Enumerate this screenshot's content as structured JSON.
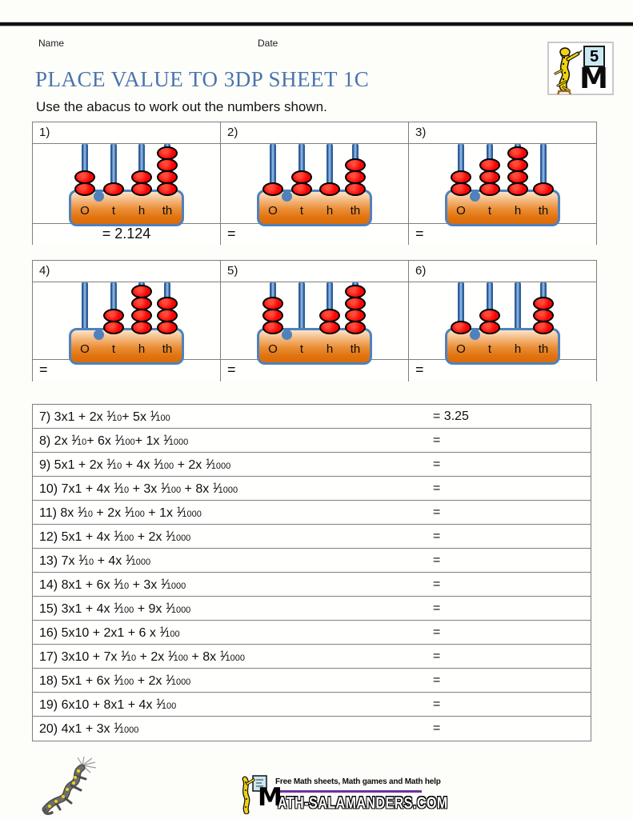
{
  "header": {
    "name_label": "Name",
    "date_label": "Date",
    "title": "PLACE VALUE TO 3DP SHEET 1C",
    "title_color": "#4a74ad",
    "instruction": "Use the abacus to work out the numbers shown.",
    "badge_number": "5",
    "badge_m": "M"
  },
  "abacus_section": {
    "column_labels": [
      "O",
      "t",
      "h",
      "th"
    ],
    "items": [
      {
        "num": "1)",
        "beads": [
          2,
          1,
          2,
          4
        ],
        "answer": "= 2.124",
        "center_answer": true
      },
      {
        "num": "2)",
        "beads": [
          1,
          2,
          1,
          3
        ],
        "answer": "="
      },
      {
        "num": "3)",
        "beads": [
          2,
          3,
          4,
          1
        ],
        "answer": "="
      },
      {
        "num": "4)",
        "beads": [
          0,
          2,
          4,
          3
        ],
        "answer": "="
      },
      {
        "num": "5)",
        "beads": [
          3,
          0,
          2,
          4
        ],
        "answer": "="
      },
      {
        "num": "6)",
        "beads": [
          1,
          2,
          0,
          3
        ],
        "answer": "="
      }
    ],
    "colors": {
      "bead": "#f90505",
      "rod": "#4f81bd",
      "base_border": "#4f81bd",
      "decimal_dot": "#4f81bd"
    }
  },
  "questions": {
    "fraction_numerator": "1",
    "rows": [
      {
        "num": "7)",
        "parts": [
          [
            "t",
            "3x1 + 2x "
          ],
          [
            "f",
            "10"
          ],
          [
            "t",
            "+ 5x "
          ],
          [
            "f",
            "100"
          ]
        ],
        "answer": "= 3.25"
      },
      {
        "num": "8)",
        "parts": [
          [
            "t",
            "2x "
          ],
          [
            "f",
            "10"
          ],
          [
            "t",
            "+ 6x "
          ],
          [
            "f",
            "100"
          ],
          [
            "t",
            "+ 1x "
          ],
          [
            "f",
            "1000"
          ]
        ],
        "answer": "="
      },
      {
        "num": "9)",
        "parts": [
          [
            "t",
            "5x1 + 2x "
          ],
          [
            "f",
            "10"
          ],
          [
            "t",
            " + 4x "
          ],
          [
            "f",
            "100"
          ],
          [
            "t",
            " + 2x "
          ],
          [
            "f",
            "1000"
          ]
        ],
        "answer": "="
      },
      {
        "num": "10)",
        "parts": [
          [
            "t",
            "7x1 + 4x "
          ],
          [
            "f",
            "10"
          ],
          [
            "t",
            " + 3x "
          ],
          [
            "f",
            "100"
          ],
          [
            "t",
            " + 8x "
          ],
          [
            "f",
            "1000"
          ]
        ],
        "answer": "="
      },
      {
        "num": "11)",
        "parts": [
          [
            "t",
            "8x "
          ],
          [
            "f",
            "10"
          ],
          [
            "t",
            " + 2x "
          ],
          [
            "f",
            "100"
          ],
          [
            "t",
            " + 1x "
          ],
          [
            "f",
            "1000"
          ]
        ],
        "answer": "="
      },
      {
        "num": "12)",
        "parts": [
          [
            "t",
            "5x1 + 4x "
          ],
          [
            "f",
            "100"
          ],
          [
            "t",
            " + 2x "
          ],
          [
            "f",
            "1000"
          ]
        ],
        "answer": "="
      },
      {
        "num": "13)",
        "parts": [
          [
            "t",
            "7x "
          ],
          [
            "f",
            "10"
          ],
          [
            "t",
            " + 4x "
          ],
          [
            "f",
            "1000"
          ]
        ],
        "answer": "="
      },
      {
        "num": "14)",
        "parts": [
          [
            "t",
            "8x1 + 6x "
          ],
          [
            "f",
            "10"
          ],
          [
            "t",
            " + 3x "
          ],
          [
            "f",
            "1000"
          ]
        ],
        "answer": "="
      },
      {
        "num": "15)",
        "parts": [
          [
            "t",
            "3x1 + 4x "
          ],
          [
            "f",
            "100"
          ],
          [
            "t",
            " + 9x "
          ],
          [
            "f",
            "1000"
          ]
        ],
        "answer": "="
      },
      {
        "num": "16)",
        "parts": [
          [
            "t",
            "5x10 + 2x1 + 6 x "
          ],
          [
            "f",
            "100"
          ]
        ],
        "answer": "="
      },
      {
        "num": "17)",
        "parts": [
          [
            "t",
            "3x10 + 7x "
          ],
          [
            "f",
            "10"
          ],
          [
            "t",
            " + 2x "
          ],
          [
            "f",
            "100"
          ],
          [
            "t",
            " + 8x "
          ],
          [
            "f",
            "1000"
          ]
        ],
        "answer": "="
      },
      {
        "num": "18)",
        "parts": [
          [
            "t",
            "5x1 + 6x "
          ],
          [
            "f",
            "100"
          ],
          [
            "t",
            " + 2x "
          ],
          [
            "f",
            "1000"
          ]
        ],
        "answer": "="
      },
      {
        "num": "19)",
        "parts": [
          [
            "t",
            "6x10 + 8x1 + 4x "
          ],
          [
            "f",
            "100"
          ]
        ],
        "answer": "="
      },
      {
        "num": "20)",
        "parts": [
          [
            "t",
            "4x1 + 3x "
          ],
          [
            "f",
            "1000"
          ]
        ],
        "answer": "="
      }
    ]
  },
  "footer": {
    "tagline": "Free Math sheets, Math games and Math help",
    "site_m": "M",
    "site_rest": "ATH-SALAMANDERS.COM",
    "bar_color": "#7030a0"
  }
}
